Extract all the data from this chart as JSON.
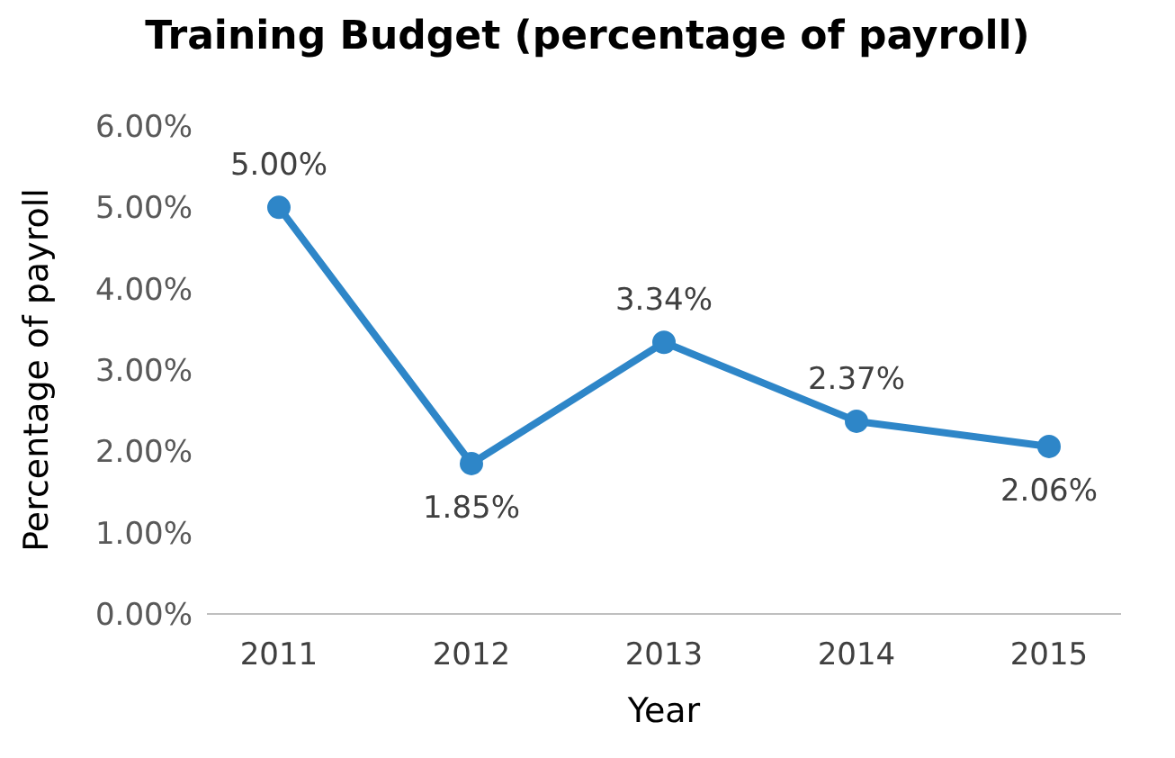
{
  "chart_data": {
    "type": "line",
    "title": "Training Budget (percentage of payroll)",
    "xlabel": "Year",
    "ylabel": "Percentage of payroll",
    "categories": [
      "2011",
      "2012",
      "2013",
      "2014",
      "2015"
    ],
    "series": [
      {
        "color": "#2e86c8",
        "values": [
          5.0,
          1.85,
          3.34,
          2.37,
          2.06
        ],
        "value_labels": [
          "5.00%",
          "1.85%",
          "3.34%",
          "2.37%",
          "2.06%"
        ]
      }
    ],
    "ylim": [
      0,
      6
    ],
    "yticks": [
      {
        "value": 0,
        "label": "0.00%"
      },
      {
        "value": 1,
        "label": "1.00%"
      },
      {
        "value": 2,
        "label": "2.00%"
      },
      {
        "value": 3,
        "label": "3.00%"
      },
      {
        "value": 4,
        "label": "4.00%"
      },
      {
        "value": 5,
        "label": "5.00%"
      },
      {
        "value": 6,
        "label": "6.00%"
      }
    ],
    "grid": false,
    "legend": false,
    "marker": "circle",
    "line_style": "solid"
  }
}
